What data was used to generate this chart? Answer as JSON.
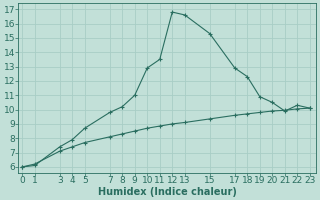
{
  "xlabel": "Humidex (Indice chaleur)",
  "bg_color": "#c2e0d8",
  "line_color": "#2a6e60",
  "grid_color": "#a8cec6",
  "curve1_x": [
    0,
    1,
    3,
    4,
    5,
    7,
    8,
    9,
    10,
    11,
    12,
    13,
    15,
    17,
    18,
    19,
    20,
    21,
    22,
    23
  ],
  "curve1_y": [
    6.0,
    6.1,
    7.4,
    7.9,
    8.7,
    9.8,
    10.2,
    11.0,
    12.9,
    13.5,
    16.8,
    16.6,
    15.3,
    12.9,
    12.3,
    10.9,
    10.5,
    9.9,
    10.3,
    10.1
  ],
  "curve2_x": [
    0,
    1,
    3,
    4,
    5,
    7,
    8,
    9,
    10,
    11,
    12,
    13,
    15,
    17,
    18,
    19,
    20,
    21,
    22,
    23
  ],
  "curve2_y": [
    6.0,
    6.2,
    7.1,
    7.4,
    7.7,
    8.1,
    8.3,
    8.5,
    8.7,
    8.85,
    9.0,
    9.1,
    9.35,
    9.6,
    9.7,
    9.8,
    9.9,
    9.95,
    10.05,
    10.1
  ],
  "xticks": [
    0,
    1,
    3,
    4,
    5,
    7,
    8,
    9,
    10,
    11,
    12,
    13,
    15,
    17,
    18,
    19,
    20,
    21,
    22,
    23
  ],
  "yticks": [
    6,
    7,
    8,
    9,
    10,
    11,
    12,
    13,
    14,
    15,
    16,
    17
  ],
  "xlim": [
    -0.3,
    23.5
  ],
  "ylim": [
    5.6,
    17.4
  ],
  "fontsize": 6.5,
  "label_fontsize": 7.0
}
